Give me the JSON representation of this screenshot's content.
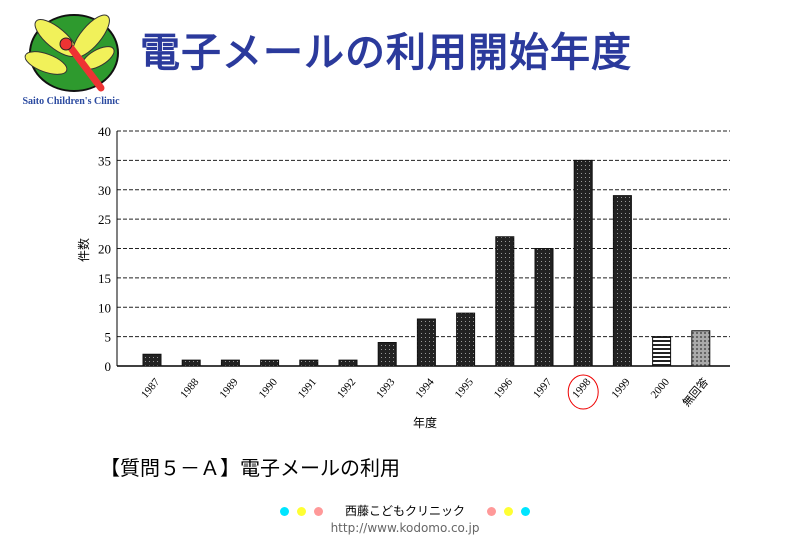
{
  "header": {
    "title": "電子メールの利用開始年度",
    "logo_text": "Saito Children's Clinic"
  },
  "caption": "【質問５－Ａ】電子メールの利用",
  "footer": {
    "clinic": "西藤こどもクリニック",
    "url": "http://www.kodomo.co.jp",
    "dot_colors": [
      "#00e5ff",
      "#ffff33",
      "#ff9999",
      "#ff9999",
      "#ffff33",
      "#00e5ff"
    ]
  },
  "chart_data": {
    "type": "bar",
    "title": "",
    "xlabel": "年度",
    "ylabel": "件数",
    "ylim": [
      0,
      40
    ],
    "yticks": [
      0,
      5,
      10,
      15,
      20,
      25,
      30,
      35,
      40
    ],
    "categories": [
      "1987",
      "1988",
      "1989",
      "1990",
      "1991",
      "1992",
      "1993",
      "1994",
      "1995",
      "1996",
      "1997",
      "1998",
      "1999",
      "2000",
      "無回答"
    ],
    "values": [
      2,
      1,
      1,
      1,
      1,
      1,
      4,
      8,
      9,
      22,
      20,
      35,
      29,
      5,
      6
    ],
    "highlighted_category": "1998",
    "grid": true
  }
}
